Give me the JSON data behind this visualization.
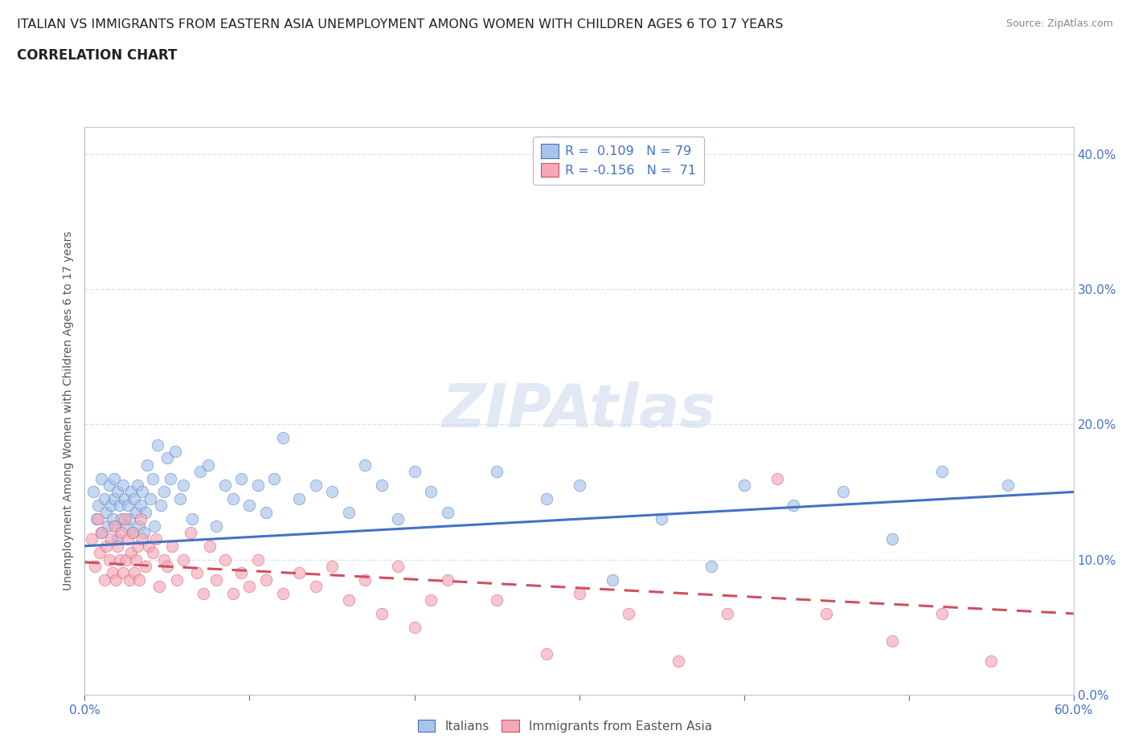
{
  "title_line1": "ITALIAN VS IMMIGRANTS FROM EASTERN ASIA UNEMPLOYMENT AMONG WOMEN WITH CHILDREN AGES 6 TO 17 YEARS",
  "title_line2": "CORRELATION CHART",
  "source_text": "Source: ZipAtlas.com",
  "ylabel": "Unemployment Among Women with Children Ages 6 to 17 years",
  "xlim": [
    0.0,
    0.6
  ],
  "ylim": [
    0.0,
    0.42
  ],
  "xticks": [
    0.0,
    0.1,
    0.2,
    0.3,
    0.4,
    0.5,
    0.6
  ],
  "yticks": [
    0.0,
    0.1,
    0.2,
    0.3,
    0.4
  ],
  "ytick_labels_right": [
    "0.0%",
    "10.0%",
    "20.0%",
    "30.0%",
    "40.0%"
  ],
  "series1_name": "Italians",
  "series1_color": "#a8c4e8",
  "series1_R": 0.109,
  "series1_N": 79,
  "series2_name": "Immigrants from Eastern Asia",
  "series2_color": "#f4a8b8",
  "series2_R": -0.156,
  "series2_N": 71,
  "trend1_color": "#4472c4",
  "trend2_color": "#d05060",
  "trend1_y0": 0.11,
  "trend1_y1": 0.15,
  "trend2_y0": 0.098,
  "trend2_y1": 0.06,
  "background_color": "#ffffff",
  "watermark": "ZIPAtlas",
  "watermark_color": "#c8d8ec",
  "grid_color": "#d8e4f0",
  "title_color": "#222222",
  "tick_color": "#4472c4",
  "ylabel_color": "#555555",
  "source_color": "#888888",
  "series1_x": [
    0.005,
    0.007,
    0.008,
    0.01,
    0.01,
    0.012,
    0.013,
    0.014,
    0.015,
    0.016,
    0.017,
    0.018,
    0.018,
    0.019,
    0.02,
    0.02,
    0.021,
    0.022,
    0.023,
    0.024,
    0.025,
    0.026,
    0.027,
    0.028,
    0.029,
    0.03,
    0.031,
    0.032,
    0.033,
    0.034,
    0.035,
    0.036,
    0.037,
    0.038,
    0.04,
    0.041,
    0.042,
    0.044,
    0.046,
    0.048,
    0.05,
    0.052,
    0.055,
    0.058,
    0.06,
    0.065,
    0.07,
    0.075,
    0.08,
    0.085,
    0.09,
    0.095,
    0.1,
    0.105,
    0.11,
    0.115,
    0.12,
    0.13,
    0.14,
    0.15,
    0.16,
    0.17,
    0.18,
    0.19,
    0.2,
    0.21,
    0.22,
    0.25,
    0.28,
    0.3,
    0.32,
    0.35,
    0.38,
    0.4,
    0.43,
    0.46,
    0.49,
    0.52,
    0.56
  ],
  "series1_y": [
    0.15,
    0.13,
    0.14,
    0.16,
    0.12,
    0.145,
    0.135,
    0.125,
    0.155,
    0.14,
    0.13,
    0.145,
    0.16,
    0.125,
    0.15,
    0.115,
    0.14,
    0.13,
    0.155,
    0.145,
    0.125,
    0.14,
    0.13,
    0.15,
    0.12,
    0.145,
    0.135,
    0.155,
    0.125,
    0.14,
    0.15,
    0.12,
    0.135,
    0.17,
    0.145,
    0.16,
    0.125,
    0.185,
    0.14,
    0.15,
    0.175,
    0.16,
    0.18,
    0.145,
    0.155,
    0.13,
    0.165,
    0.17,
    0.125,
    0.155,
    0.145,
    0.16,
    0.14,
    0.155,
    0.135,
    0.16,
    0.19,
    0.145,
    0.155,
    0.15,
    0.135,
    0.17,
    0.155,
    0.13,
    0.165,
    0.15,
    0.135,
    0.165,
    0.145,
    0.155,
    0.085,
    0.13,
    0.095,
    0.155,
    0.14,
    0.15,
    0.115,
    0.165,
    0.155
  ],
  "series2_x": [
    0.004,
    0.006,
    0.008,
    0.009,
    0.01,
    0.012,
    0.013,
    0.015,
    0.016,
    0.017,
    0.018,
    0.019,
    0.02,
    0.021,
    0.022,
    0.023,
    0.024,
    0.025,
    0.026,
    0.027,
    0.028,
    0.029,
    0.03,
    0.031,
    0.032,
    0.033,
    0.034,
    0.035,
    0.037,
    0.039,
    0.041,
    0.043,
    0.045,
    0.048,
    0.05,
    0.053,
    0.056,
    0.06,
    0.064,
    0.068,
    0.072,
    0.076,
    0.08,
    0.085,
    0.09,
    0.095,
    0.1,
    0.105,
    0.11,
    0.12,
    0.13,
    0.14,
    0.15,
    0.16,
    0.17,
    0.18,
    0.19,
    0.2,
    0.21,
    0.22,
    0.25,
    0.28,
    0.3,
    0.33,
    0.36,
    0.39,
    0.42,
    0.45,
    0.49,
    0.52,
    0.55
  ],
  "series2_y": [
    0.115,
    0.095,
    0.13,
    0.105,
    0.12,
    0.085,
    0.11,
    0.1,
    0.115,
    0.09,
    0.125,
    0.085,
    0.11,
    0.1,
    0.12,
    0.09,
    0.13,
    0.1,
    0.115,
    0.085,
    0.105,
    0.12,
    0.09,
    0.1,
    0.11,
    0.085,
    0.13,
    0.115,
    0.095,
    0.11,
    0.105,
    0.115,
    0.08,
    0.1,
    0.095,
    0.11,
    0.085,
    0.1,
    0.12,
    0.09,
    0.075,
    0.11,
    0.085,
    0.1,
    0.075,
    0.09,
    0.08,
    0.1,
    0.085,
    0.075,
    0.09,
    0.08,
    0.095,
    0.07,
    0.085,
    0.06,
    0.095,
    0.05,
    0.07,
    0.085,
    0.07,
    0.03,
    0.075,
    0.06,
    0.025,
    0.06,
    0.16,
    0.06,
    0.04,
    0.06,
    0.025
  ]
}
